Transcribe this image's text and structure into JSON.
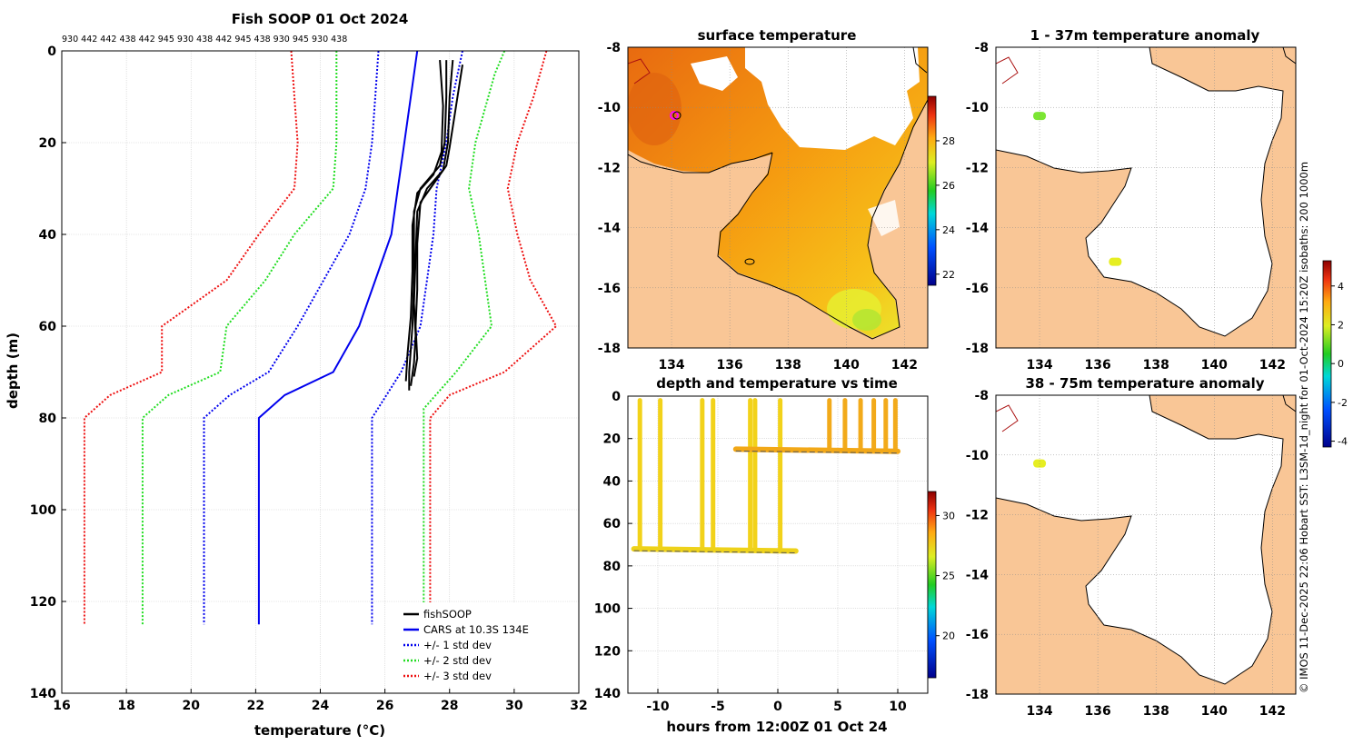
{
  "page_title": "Fish SOOP 01 Oct 2024",
  "colors": {
    "land": "#f9c696",
    "sea_white": "#ffffff",
    "fishsoop": "#000000",
    "cars": "#0000ee",
    "std1": "#0000ee",
    "std2": "#22dd22",
    "std3": "#ee1111",
    "anomaly_high": "#eeee22",
    "anomaly_mid": "#88ee22"
  },
  "chart_data": [
    {
      "id": "profile",
      "type": "line",
      "title": "Fish SOOP 01 Oct 2024",
      "xlabel": "temperature (°C)",
      "ylabel": "depth (m)",
      "xlim": [
        16,
        32
      ],
      "ylim": [
        0,
        140
      ],
      "y_inverted": true,
      "xticks": [
        16,
        18,
        20,
        22,
        24,
        26,
        28,
        30,
        32
      ],
      "yticks": [
        0,
        20,
        40,
        60,
        80,
        100,
        120,
        140
      ],
      "top_labels": [
        "930",
        "442",
        "442",
        "438",
        "442",
        "945",
        "930",
        "438",
        "442",
        "945",
        "438",
        "930",
        "945",
        "930",
        "438"
      ],
      "legend": [
        "fishSOOP",
        "CARS at 10.3S 134E",
        "+/- 1 std dev",
        "+/- 2 std dev",
        "+/- 3 std dev"
      ],
      "series": [
        {
          "name": "CARS at 10.3S 134E",
          "color": "#0000ee",
          "dash": "",
          "points": [
            [
              27.0,
              0
            ],
            [
              26.8,
              10
            ],
            [
              26.6,
              20
            ],
            [
              26.4,
              30
            ],
            [
              26.2,
              40
            ],
            [
              25.7,
              50
            ],
            [
              25.2,
              60
            ],
            [
              24.4,
              70
            ],
            [
              22.9,
              75
            ],
            [
              22.1,
              80
            ],
            [
              22.1,
              100
            ],
            [
              22.1,
              125
            ]
          ]
        },
        {
          "name": "+1 std dev",
          "color": "#0000ee",
          "dash": "2,2",
          "points": [
            [
              28.4,
              0
            ],
            [
              28.1,
              10
            ],
            [
              27.9,
              20
            ],
            [
              27.6,
              30
            ],
            [
              27.5,
              40
            ],
            [
              27.3,
              50
            ],
            [
              27.1,
              60
            ],
            [
              26.5,
              70
            ],
            [
              25.6,
              80
            ],
            [
              25.6,
              100
            ],
            [
              25.6,
              125
            ]
          ]
        },
        {
          "name": "-1 std dev",
          "color": "#0000ee",
          "dash": "2,2",
          "points": [
            [
              25.8,
              0
            ],
            [
              25.7,
              10
            ],
            [
              25.6,
              20
            ],
            [
              25.4,
              30
            ],
            [
              24.9,
              40
            ],
            [
              24.1,
              50
            ],
            [
              23.3,
              60
            ],
            [
              22.4,
              70
            ],
            [
              21.2,
              75
            ],
            [
              20.4,
              80
            ],
            [
              20.4,
              100
            ],
            [
              20.4,
              125
            ]
          ]
        },
        {
          "name": "+2 std dev",
          "color": "#22dd22",
          "dash": "2,2",
          "points": [
            [
              29.7,
              0
            ],
            [
              29.4,
              5
            ],
            [
              28.8,
              20
            ],
            [
              28.6,
              30
            ],
            [
              28.9,
              40
            ],
            [
              29.1,
              50
            ],
            [
              29.3,
              60
            ],
            [
              28.2,
              70
            ],
            [
              27.2,
              78
            ],
            [
              27.2,
              80
            ],
            [
              27.2,
              100
            ],
            [
              27.2,
              125
            ]
          ]
        },
        {
          "name": "-2 std dev",
          "color": "#22dd22",
          "dash": "2,2",
          "points": [
            [
              24.5,
              0
            ],
            [
              24.5,
              10
            ],
            [
              24.5,
              20
            ],
            [
              24.4,
              30
            ],
            [
              23.2,
              40
            ],
            [
              22.3,
              50
            ],
            [
              21.1,
              60
            ],
            [
              20.9,
              70
            ],
            [
              19.3,
              75
            ],
            [
              18.5,
              80
            ],
            [
              18.5,
              100
            ],
            [
              18.5,
              125
            ]
          ]
        },
        {
          "name": "+3 std dev",
          "color": "#ee1111",
          "dash": "2,2",
          "points": [
            [
              31.0,
              0
            ],
            [
              30.6,
              10
            ],
            [
              30.1,
              20
            ],
            [
              29.8,
              30
            ],
            [
              30.1,
              40
            ],
            [
              30.5,
              50
            ],
            [
              31.3,
              60
            ],
            [
              29.7,
              70
            ],
            [
              28.0,
              75
            ],
            [
              27.4,
              80
            ],
            [
              27.4,
              100
            ],
            [
              27.4,
              125
            ]
          ]
        },
        {
          "name": "-3 std dev",
          "color": "#ee1111",
          "dash": "2,2",
          "points": [
            [
              23.1,
              0
            ],
            [
              23.2,
              10
            ],
            [
              23.3,
              20
            ],
            [
              23.2,
              30
            ],
            [
              22.1,
              40
            ],
            [
              21.1,
              50
            ],
            [
              19.1,
              60
            ],
            [
              19.1,
              70
            ],
            [
              17.5,
              75
            ],
            [
              16.7,
              80
            ],
            [
              16.7,
              100
            ],
            [
              16.7,
              125
            ]
          ]
        },
        {
          "name": "fishSOOP",
          "color": "#000000",
          "dash": "",
          "points": [
            [
              27.9,
              2
            ],
            [
              27.9,
              10
            ],
            [
              27.85,
              20
            ],
            [
              27.7,
              25
            ],
            [
              27.1,
              30
            ],
            [
              26.9,
              35
            ],
            [
              26.9,
              40
            ],
            [
              26.9,
              50
            ],
            [
              26.85,
              60
            ],
            [
              26.8,
              65
            ],
            [
              26.75,
              70
            ],
            [
              26.75,
              74
            ]
          ]
        },
        {
          "name": "fishSOOP b",
          "color": "#000000",
          "dash": "",
          "points": [
            [
              28.1,
              2
            ],
            [
              28.0,
              10
            ],
            [
              27.95,
              20
            ],
            [
              27.8,
              26
            ],
            [
              27.3,
              30
            ],
            [
              27.0,
              35
            ],
            [
              26.95,
              45
            ],
            [
              26.9,
              55
            ],
            [
              26.95,
              62
            ],
            [
              26.9,
              68
            ],
            [
              26.8,
              73
            ]
          ]
        },
        {
          "name": "fishSOOP c",
          "color": "#000000",
          "dash": "",
          "points": [
            [
              27.7,
              2
            ],
            [
              27.8,
              12
            ],
            [
              27.75,
              22
            ],
            [
              27.5,
              27
            ],
            [
              27.0,
              31
            ],
            [
              26.85,
              38
            ],
            [
              26.85,
              48
            ],
            [
              26.8,
              58
            ],
            [
              26.7,
              66
            ],
            [
              26.65,
              72
            ]
          ]
        },
        {
          "name": "fishSOOP d",
          "color": "#000000",
          "dash": "",
          "points": [
            [
              28.4,
              3
            ],
            [
              28.2,
              12
            ],
            [
              28.0,
              21
            ],
            [
              27.9,
              25
            ],
            [
              27.5,
              29
            ],
            [
              27.1,
              33
            ],
            [
              27.0,
              42
            ],
            [
              27.0,
              52
            ],
            [
              26.95,
              60
            ],
            [
              27.0,
              67
            ],
            [
              26.9,
              71
            ]
          ]
        }
      ]
    },
    {
      "id": "sst_map",
      "type": "heatmap",
      "title": "surface temperature",
      "xlim": [
        132.5,
        142.8
      ],
      "ylim": [
        -18,
        -8
      ],
      "xticks": [
        134,
        136,
        138,
        140,
        142
      ],
      "yticks": [
        -8,
        -10,
        -12,
        -14,
        -16,
        -18
      ],
      "colorbar": {
        "min": 21.5,
        "max": 30,
        "ticks": [
          22,
          24,
          26,
          28
        ]
      },
      "marker": {
        "lon": 134.0,
        "lat": -10.3
      }
    },
    {
      "id": "depth_time",
      "type": "scatter",
      "title": "depth and temperature vs time",
      "xlabel": "hours from 12:00Z 01 Oct 24",
      "xlim": [
        -12.5,
        12.5
      ],
      "ylim": [
        0,
        140
      ],
      "y_inverted": true,
      "xticks": [
        -10,
        -5,
        0,
        5,
        10
      ],
      "yticks": [
        0,
        20,
        40,
        60,
        80,
        100,
        120,
        140
      ],
      "colorbar": {
        "min": 16.5,
        "max": 32,
        "ticks": [
          20,
          25,
          30
        ]
      },
      "shallow_segment": {
        "x": [
          -3.5,
          10
        ],
        "depth": [
          25,
          26
        ],
        "temp": 27.9
      },
      "deep_segment": {
        "x": [
          -12,
          1.5
        ],
        "depth": [
          72,
          73
        ],
        "temp": 26.8
      },
      "casts": [
        -11.5,
        -9.8,
        -6.3,
        -5.4,
        -2.3,
        -1.9,
        0.2,
        4.3,
        5.6,
        6.9,
        8.0,
        9.0,
        9.8
      ]
    },
    {
      "id": "anom_1_37",
      "type": "heatmap",
      "title": "1 - 37m temperature anomaly",
      "xlim": [
        132.5,
        142.8
      ],
      "ylim": [
        -18,
        -8
      ],
      "xticks": [
        134,
        136,
        138,
        140,
        142
      ],
      "yticks": [
        -8,
        -10,
        -12,
        -14,
        -16,
        -18
      ],
      "points": [
        {
          "lon": 134.0,
          "lat": -10.3,
          "anom": 1.0
        },
        {
          "lon": 136.6,
          "lat": -15.15,
          "anom": 2.7
        }
      ]
    },
    {
      "id": "anom_38_75",
      "type": "heatmap",
      "title": "38 - 75m temperature anomaly",
      "xlim": [
        132.5,
        142.8
      ],
      "ylim": [
        -18,
        -8
      ],
      "xticks": [
        134,
        136,
        138,
        140,
        142
      ],
      "yticks": [
        -8,
        -10,
        -12,
        -14,
        -16,
        -18
      ],
      "points": [
        {
          "lon": 134.0,
          "lat": -10.3,
          "anom": 2.7
        }
      ],
      "colorbar": {
        "min": -4.3,
        "max": 5.3,
        "ticks": [
          -4,
          -2,
          0,
          2,
          4
        ]
      }
    }
  ],
  "credit": "© IMOS 11-Dec-2025 22:06 Hobart SST: L3SM-1d_night for 01-Oct-2024 15:20Z isobaths: 200  1000m"
}
